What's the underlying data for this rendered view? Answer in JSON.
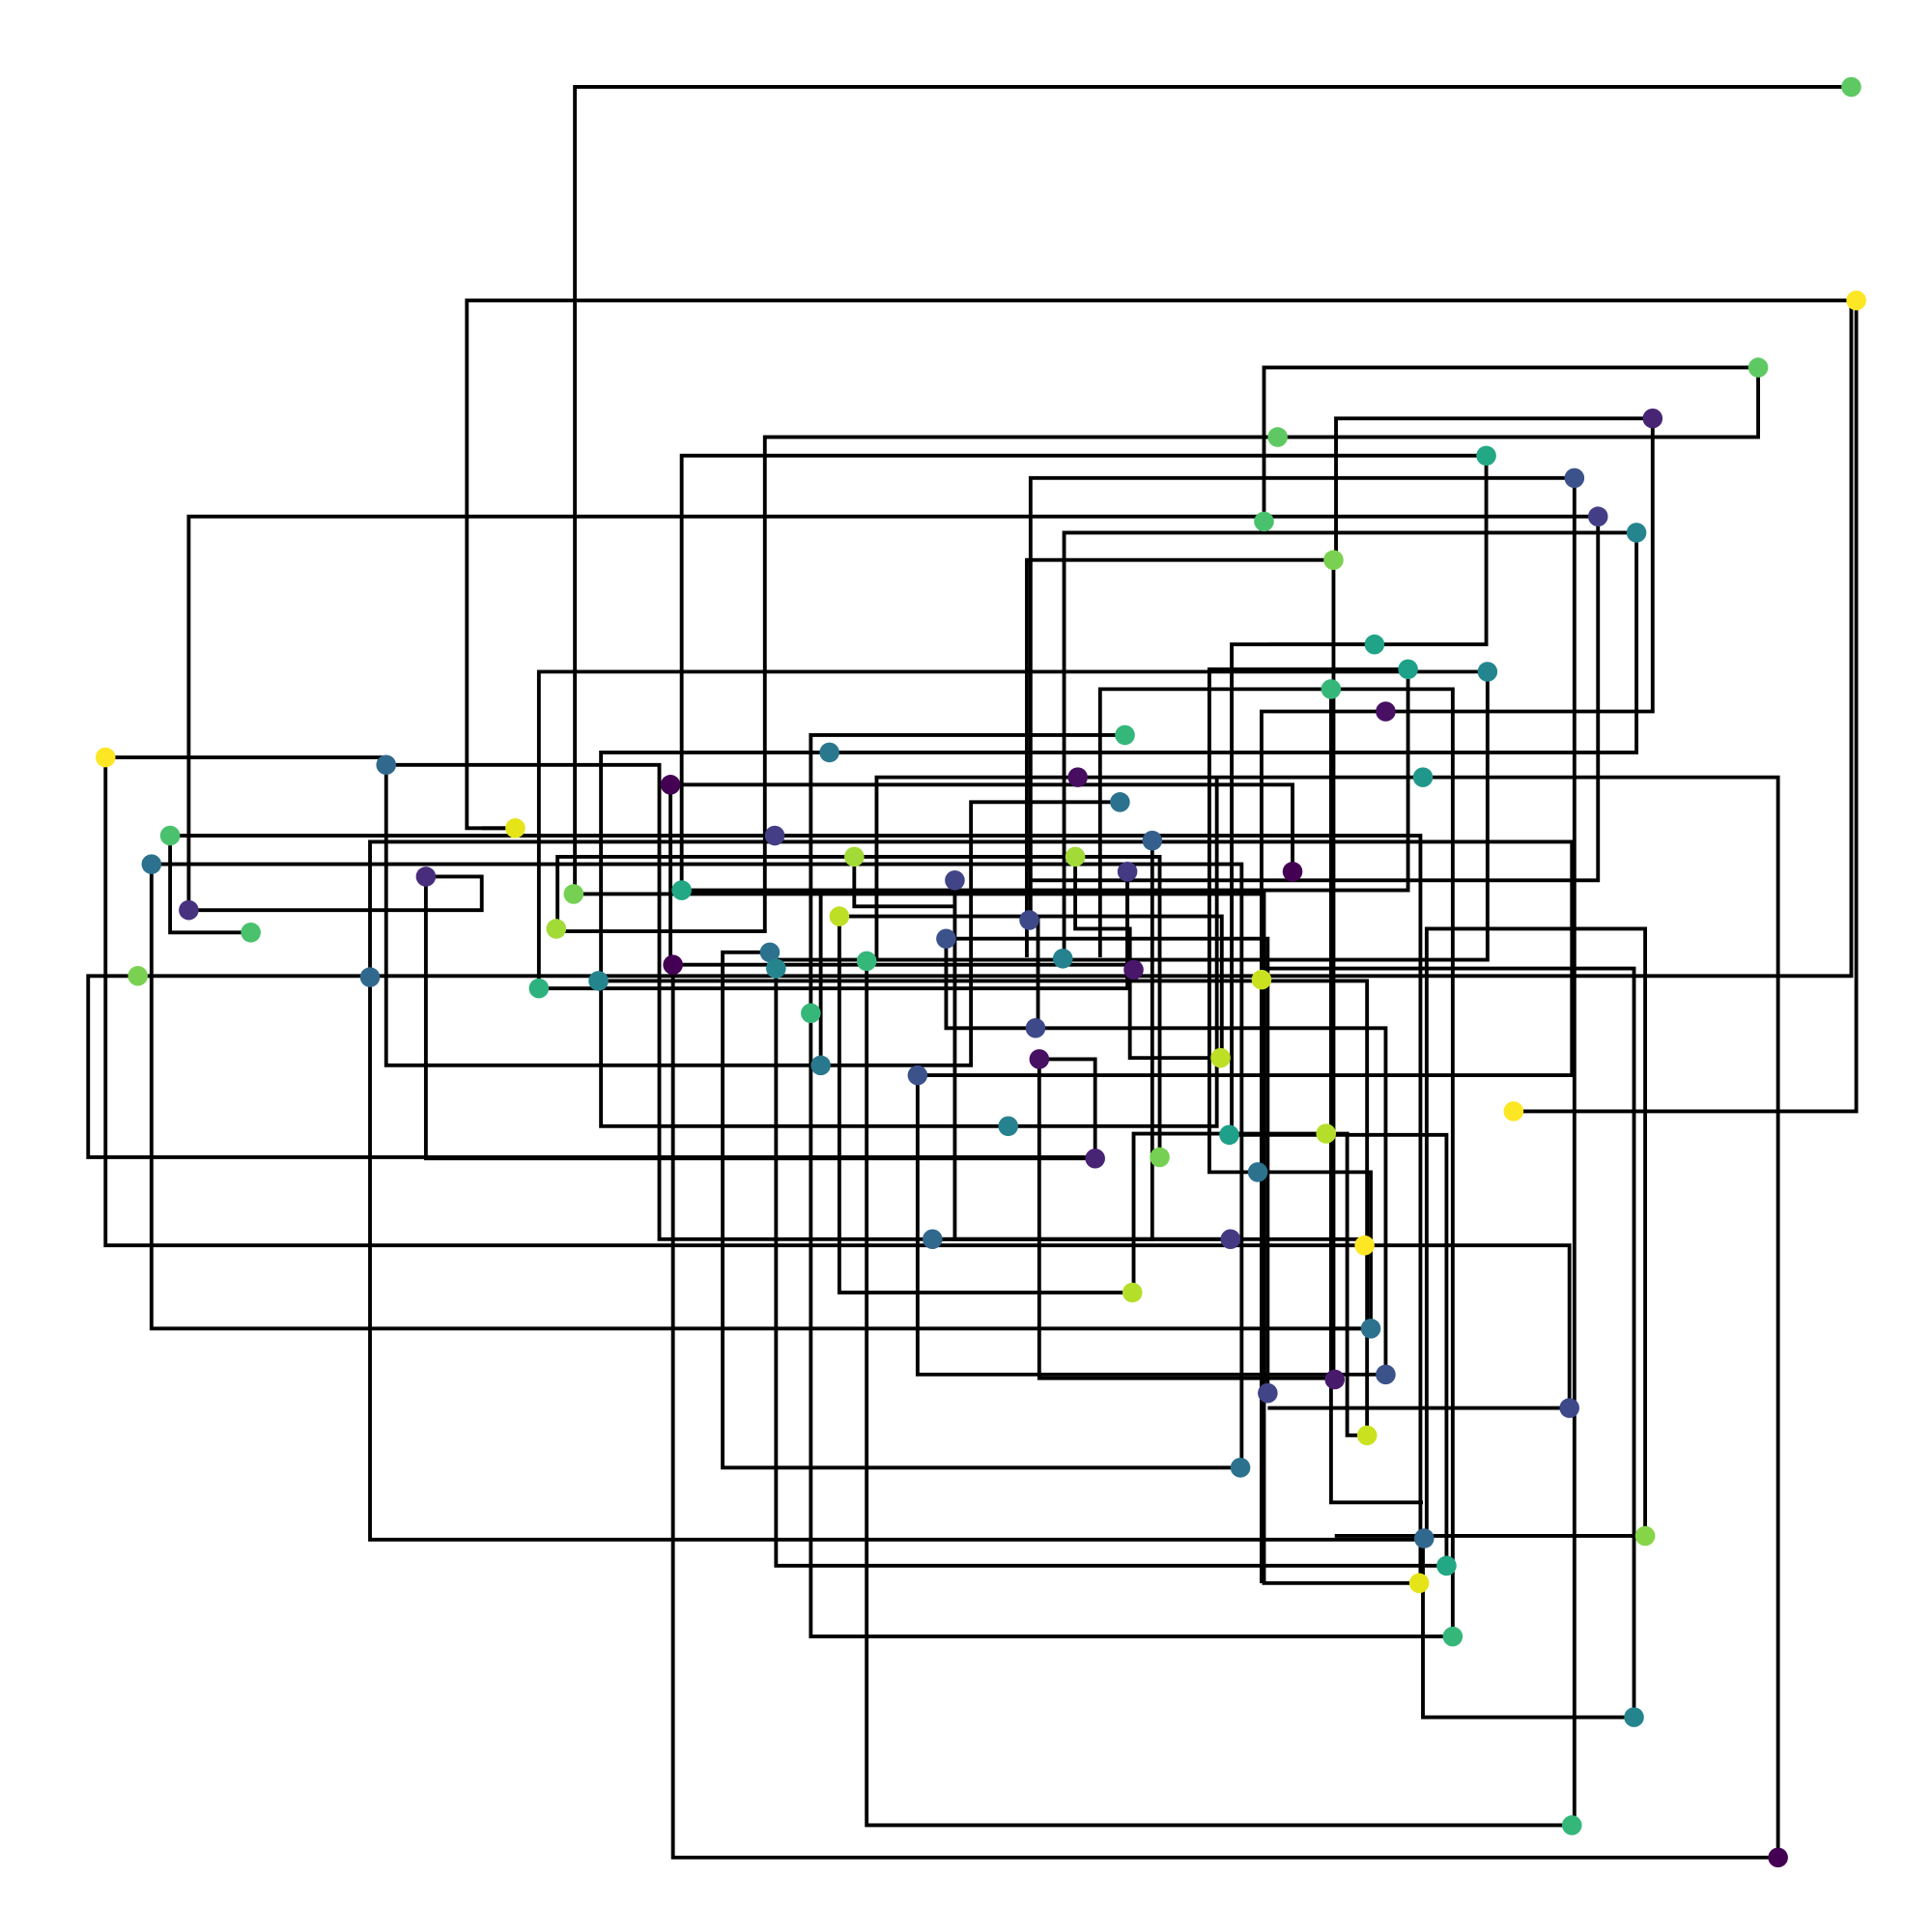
{
  "graph": {
    "kind": "orthogonal-network",
    "node_count": 100,
    "edge_color": "#000000",
    "colormap": "viridis",
    "note": ""
  }
}
